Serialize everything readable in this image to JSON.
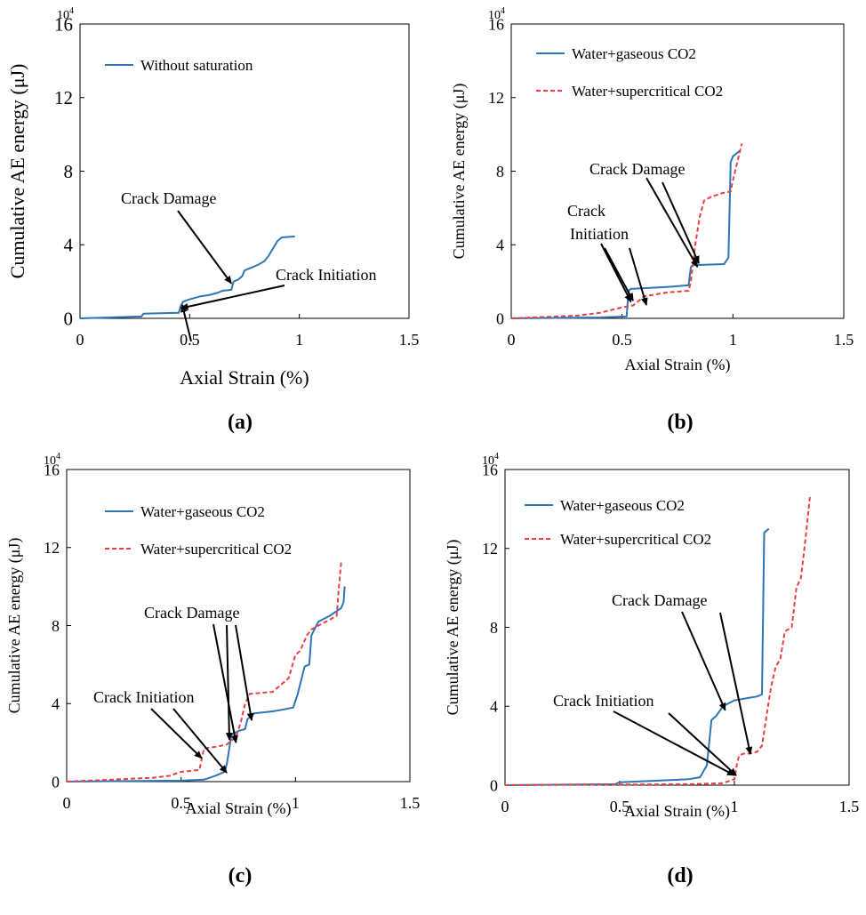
{
  "chart_data": [
    {
      "panel": "(a)",
      "type": "line",
      "xlabel": "Axial Strain (%)",
      "ylabel": "Cumulative AE energy (μJ)",
      "y_multiplier": "10",
      "y_multiplier_exp": "4",
      "xlim": [
        0,
        1.5
      ],
      "ylim": [
        0,
        16
      ],
      "xticks": [
        0,
        0.5,
        1,
        1.5
      ],
      "xtick_labels": [
        "0",
        "0.5",
        "1",
        "1.5"
      ],
      "yticks": [
        0,
        4,
        8,
        12,
        16
      ],
      "ytick_labels": [
        "0",
        "4",
        "8",
        "12",
        "16"
      ],
      "grid": false,
      "legend_position": "top-left",
      "series": [
        {
          "name": "Without saturation",
          "color": "#2e75b6",
          "dash": "solid",
          "x": [
            0,
            0.28,
            0.29,
            0.45,
            0.46,
            0.47,
            0.49,
            0.52,
            0.55,
            0.58,
            0.6,
            0.63,
            0.65,
            0.69,
            0.7,
            0.72,
            0.74,
            0.75,
            0.77,
            0.79,
            0.81,
            0.84,
            0.86,
            0.87,
            0.9,
            0.92,
            0.98
          ],
          "y": [
            0,
            0.1,
            0.25,
            0.3,
            0.7,
            0.9,
            1.0,
            1.1,
            1.2,
            1.25,
            1.3,
            1.4,
            1.5,
            1.55,
            2.0,
            2.1,
            2.3,
            2.6,
            2.7,
            2.8,
            2.9,
            3.1,
            3.4,
            3.6,
            4.2,
            4.4,
            4.45
          ]
        }
      ],
      "annotations": [
        {
          "text": "Crack Damage",
          "arrow_to": [
            0.69,
            1.9
          ]
        },
        {
          "text": "Crack Initiation",
          "arrow_to": [
            0.46,
            0.55
          ]
        }
      ]
    },
    {
      "panel": "(b)",
      "type": "line",
      "xlabel": "Axial Strain (%)",
      "ylabel": "Cumulative AE energy (μJ)",
      "y_multiplier": "10",
      "y_multiplier_exp": "4",
      "xlim": [
        0,
        1.5
      ],
      "ylim": [
        0,
        16
      ],
      "xticks": [
        0,
        0.5,
        1,
        1.5
      ],
      "xtick_labels": [
        "0",
        "0.5",
        "1",
        "1.5"
      ],
      "yticks": [
        0,
        4,
        8,
        12,
        16
      ],
      "ytick_labels": [
        "0",
        "4",
        "8",
        "12",
        "16"
      ],
      "grid": false,
      "legend_position": "top-left",
      "series": [
        {
          "name": "Water+gaseous CO2",
          "color": "#2e75b6",
          "dash": "solid",
          "x": [
            0,
            0.4,
            0.52,
            0.53,
            0.54,
            0.7,
            0.8,
            0.81,
            0.82,
            0.84,
            0.96,
            0.98,
            0.99,
            1.0,
            1.02,
            1.03
          ],
          "y": [
            0,
            0.05,
            0.1,
            1.5,
            1.6,
            1.7,
            1.8,
            2.8,
            2.9,
            2.9,
            2.95,
            3.3,
            8.5,
            8.8,
            9.0,
            9.1
          ]
        },
        {
          "name": "Water+supercritical CO2",
          "color": "#e84040",
          "dash": "dashed",
          "x": [
            0,
            0.3,
            0.4,
            0.5,
            0.55,
            0.6,
            0.65,
            0.7,
            0.8,
            0.81,
            0.83,
            0.85,
            0.87,
            0.9,
            0.95,
            0.99,
            1.0,
            1.02,
            1.03,
            1.04
          ],
          "y": [
            0,
            0.15,
            0.3,
            0.6,
            0.7,
            1.2,
            1.3,
            1.4,
            1.5,
            2.0,
            4.0,
            5.5,
            6.4,
            6.6,
            6.8,
            6.9,
            7.5,
            8.5,
            9.0,
            9.5
          ]
        }
      ],
      "annotations": [
        {
          "text": "Crack Damage",
          "arrow_to": [
            0.84,
            2.8
          ]
        },
        {
          "text": "Crack Initiation",
          "arrow_to": [
            0.54,
            0.9
          ]
        }
      ]
    },
    {
      "panel": "(c)",
      "type": "line",
      "xlabel": "Axial Strain (%)",
      "ylabel": "Cumulative AE energy (μJ)",
      "y_multiplier": "10",
      "y_multiplier_exp": "4",
      "xlim": [
        0,
        1.5
      ],
      "ylim": [
        0,
        16
      ],
      "xticks": [
        0,
        0.5,
        1,
        1.5
      ],
      "xtick_labels": [
        "0",
        "0.5",
        "1",
        "1.5"
      ],
      "yticks": [
        0,
        4,
        8,
        12,
        16
      ],
      "ytick_labels": [
        "0",
        "4",
        "8",
        "12",
        "16"
      ],
      "grid": false,
      "legend_position": "top-left",
      "series": [
        {
          "name": "Water+gaseous CO2",
          "color": "#2e75b6",
          "dash": "solid",
          "x": [
            0,
            0.5,
            0.6,
            0.65,
            0.69,
            0.7,
            0.72,
            0.75,
            0.78,
            0.79,
            0.82,
            0.9,
            0.95,
            0.99,
            1.01,
            1.04,
            1.06,
            1.07,
            1.1,
            1.15,
            1.2,
            1.21,
            1.215
          ],
          "y": [
            0,
            0.05,
            0.1,
            0.3,
            0.5,
            0.9,
            2.4,
            2.6,
            2.7,
            3.2,
            3.5,
            3.6,
            3.7,
            3.8,
            4.5,
            5.9,
            6.0,
            7.5,
            8.2,
            8.5,
            8.9,
            9.2,
            10.0
          ]
        },
        {
          "name": "Water+supercritical CO2",
          "color": "#e84040",
          "dash": "dashed",
          "x": [
            0,
            0.38,
            0.45,
            0.5,
            0.58,
            0.6,
            0.66,
            0.7,
            0.72,
            0.74,
            0.76,
            0.78,
            0.8,
            0.9,
            0.97,
            1.0,
            1.02,
            1.05,
            1.07,
            1.1,
            1.15,
            1.18,
            1.19,
            1.2
          ],
          "y": [
            0,
            0.2,
            0.3,
            0.5,
            0.6,
            1.7,
            1.8,
            1.9,
            2.1,
            2.3,
            3.0,
            4.0,
            4.5,
            4.6,
            5.3,
            6.5,
            6.7,
            7.5,
            7.8,
            8.0,
            8.3,
            8.5,
            10.0,
            11.3
          ]
        }
      ],
      "annotations": [
        {
          "text": "Crack Damage",
          "arrow_to": [
            0.74,
            2.0
          ]
        },
        {
          "text": "Crack Initiation",
          "arrow_to": [
            0.59,
            1.2
          ]
        }
      ]
    },
    {
      "panel": "(d)",
      "type": "line",
      "xlabel": "Axial Strain (%)",
      "ylabel": "Cumulative AE energy (μJ)",
      "y_multiplier": "10",
      "y_multiplier_exp": "4",
      "xlim": [
        0,
        1.5
      ],
      "ylim": [
        0,
        16
      ],
      "xticks": [
        0,
        0.5,
        1,
        1.5
      ],
      "xtick_labels": [
        "0",
        "0.5",
        "1",
        "1.5"
      ],
      "yticks": [
        0,
        4,
        8,
        12,
        16
      ],
      "ytick_labels": [
        "0",
        "4",
        "8",
        "12",
        "16"
      ],
      "grid": false,
      "legend_position": "top-left",
      "series": [
        {
          "name": "Water+gaseous CO2",
          "color": "#2e75b6",
          "dash": "solid",
          "x": [
            0,
            0.48,
            0.5,
            0.6,
            0.7,
            0.8,
            0.85,
            0.88,
            0.9,
            0.92,
            0.95,
            1.0,
            1.05,
            1.1,
            1.12,
            1.13,
            1.15
          ],
          "y": [
            0,
            0.05,
            0.15,
            0.2,
            0.25,
            0.3,
            0.4,
            1.0,
            3.3,
            3.5,
            4.0,
            4.3,
            4.4,
            4.5,
            4.6,
            12.8,
            13.0
          ]
        },
        {
          "name": "Water+supercritical CO2",
          "color": "#e84040",
          "dash": "dashed",
          "x": [
            0,
            0.8,
            0.95,
            1.0,
            1.01,
            1.02,
            1.04,
            1.06,
            1.1,
            1.12,
            1.14,
            1.16,
            1.18,
            1.2,
            1.22,
            1.25,
            1.27,
            1.29,
            1.31,
            1.33
          ],
          "y": [
            0,
            0.05,
            0.1,
            0.3,
            1.0,
            1.5,
            1.6,
            1.6,
            1.7,
            2.0,
            3.5,
            5.0,
            6.0,
            6.4,
            7.8,
            8.0,
            10.0,
            10.5,
            12.5,
            14.7
          ]
        }
      ],
      "annotations": [
        {
          "text": "Crack Damage",
          "arrow_to": [
            0.96,
            3.8
          ]
        },
        {
          "text": "Crack Initiation",
          "arrow_to": [
            1.0,
            0.5
          ]
        }
      ]
    }
  ]
}
